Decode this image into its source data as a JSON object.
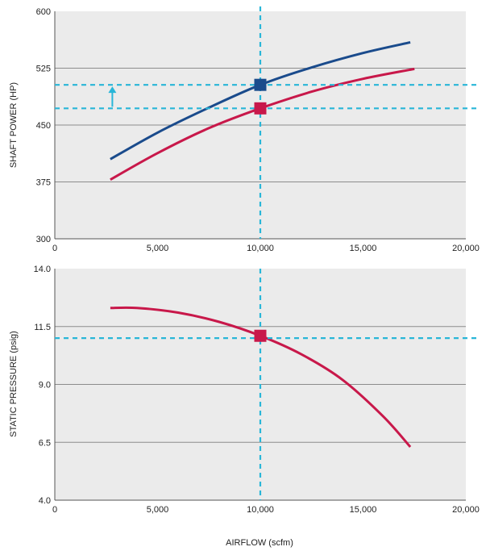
{
  "chart_data": [
    {
      "type": "line",
      "ylabel": "SHAFT POWER (HP)",
      "xlim": [
        0,
        20000
      ],
      "ylim": [
        300,
        600
      ],
      "x_ticks": [
        "0",
        "5,000",
        "10,000",
        "15,000",
        "20,000"
      ],
      "y_ticks": [
        "300",
        "375",
        "450",
        "525",
        "600"
      ],
      "grid": true,
      "background": "#ebebeb",
      "series": [
        {
          "color": "#1a4b8c",
          "points": [
            [
              2700,
              405
            ],
            [
              5000,
              440
            ],
            [
              7500,
              473
            ],
            [
              10000,
              503
            ],
            [
              12500,
              526
            ],
            [
              15000,
              545
            ],
            [
              17300,
              559
            ]
          ]
        },
        {
          "color": "#c8184a",
          "points": [
            [
              2700,
              378
            ],
            [
              5000,
              413
            ],
            [
              7500,
              446
            ],
            [
              10000,
              472
            ],
            [
              12500,
              494
            ],
            [
              15000,
              511
            ],
            [
              17500,
              524
            ]
          ]
        }
      ],
      "reference_lines": {
        "vertical_x": 10000,
        "horizontal_y": [
          503,
          472
        ],
        "color": "#29b6d8"
      },
      "markers": [
        {
          "x": 10000,
          "y": 503,
          "color": "#1a4b8c",
          "shape": "square"
        },
        {
          "x": 10000,
          "y": 472,
          "color": "#c8184a",
          "shape": "square"
        }
      ],
      "annotations": [
        {
          "type": "arrow-up",
          "x": 2800,
          "from": 472,
          "to": 503,
          "color": "#29b6d8"
        }
      ]
    },
    {
      "type": "line",
      "ylabel": "STATIC PRESSURE (psig)",
      "xlabel": "AIRFLOW (scfm)",
      "xlim": [
        0,
        20000
      ],
      "ylim": [
        4.0,
        14.0
      ],
      "x_ticks": [
        "0",
        "5,000",
        "10,000",
        "15,000",
        "20,000"
      ],
      "y_ticks": [
        "4.0",
        "6.5",
        "9.0",
        "11.5",
        "14.0"
      ],
      "grid": true,
      "background": "#ebebeb",
      "series": [
        {
          "color": "#c8184a",
          "points": [
            [
              2700,
              12.3
            ],
            [
              4000,
              12.3
            ],
            [
              6000,
              12.1
            ],
            [
              8000,
              11.7
            ],
            [
              10000,
              11.1
            ],
            [
              12000,
              10.3
            ],
            [
              14000,
              9.2
            ],
            [
              16000,
              7.6
            ],
            [
              17300,
              6.3
            ]
          ]
        }
      ],
      "reference_lines": {
        "vertical_x": 10000,
        "horizontal_y": [
          11.0
        ],
        "color": "#29b6d8"
      },
      "markers": [
        {
          "x": 10000,
          "y": 11.1,
          "color": "#c8184a",
          "shape": "square"
        }
      ]
    }
  ]
}
